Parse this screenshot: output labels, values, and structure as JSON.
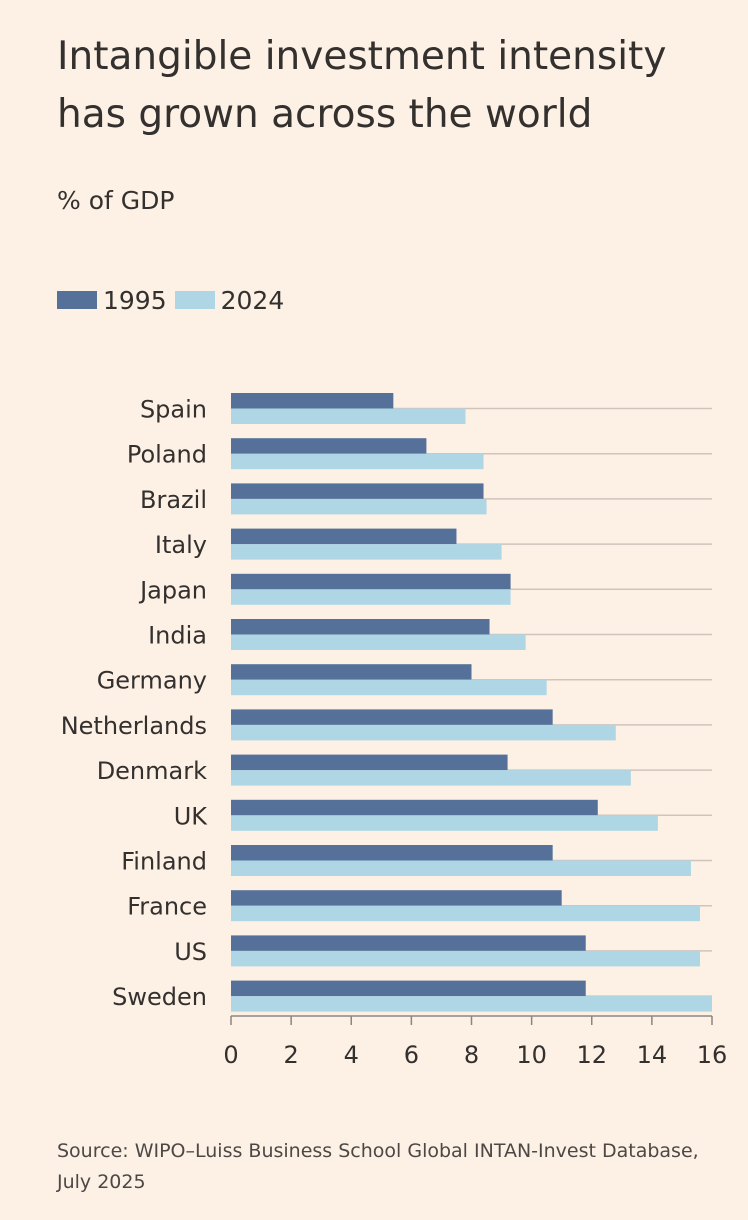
{
  "title": "Intangible investment intensity has grown across the world",
  "subtitle": "% of GDP",
  "source": "Source: WIPO–Luiss Business School Global INTAN-Invest Database, July 2025",
  "colors": {
    "background": "#fdf1e6",
    "series_1995": "#557199",
    "series_2024": "#afd6e4",
    "gridline": "#cfc4bc",
    "text": "#33302e"
  },
  "chart_data": {
    "type": "bar",
    "orientation": "horizontal",
    "title": "Intangible investment intensity has grown across the world",
    "subtitle": "% of GDP",
    "categories": [
      "Spain",
      "Poland",
      "Brazil",
      "Italy",
      "Japan",
      "India",
      "Germany",
      "Netherlands",
      "Denmark",
      "UK",
      "Finland",
      "France",
      "US",
      "Sweden"
    ],
    "series": [
      {
        "name": "1995",
        "values": [
          5.4,
          6.5,
          8.4,
          7.5,
          9.3,
          8.6,
          8.0,
          10.7,
          9.2,
          12.2,
          10.7,
          11.0,
          11.8,
          11.8
        ]
      },
      {
        "name": "2024",
        "values": [
          7.8,
          8.4,
          8.5,
          9.0,
          9.3,
          9.8,
          10.5,
          12.8,
          13.3,
          14.2,
          15.3,
          15.6,
          15.6,
          16.0
        ]
      }
    ],
    "xlim": [
      0,
      16
    ],
    "xticks": [
      0,
      2,
      4,
      6,
      8,
      10,
      12,
      14,
      16
    ],
    "legend": "top-left",
    "grid": true
  }
}
